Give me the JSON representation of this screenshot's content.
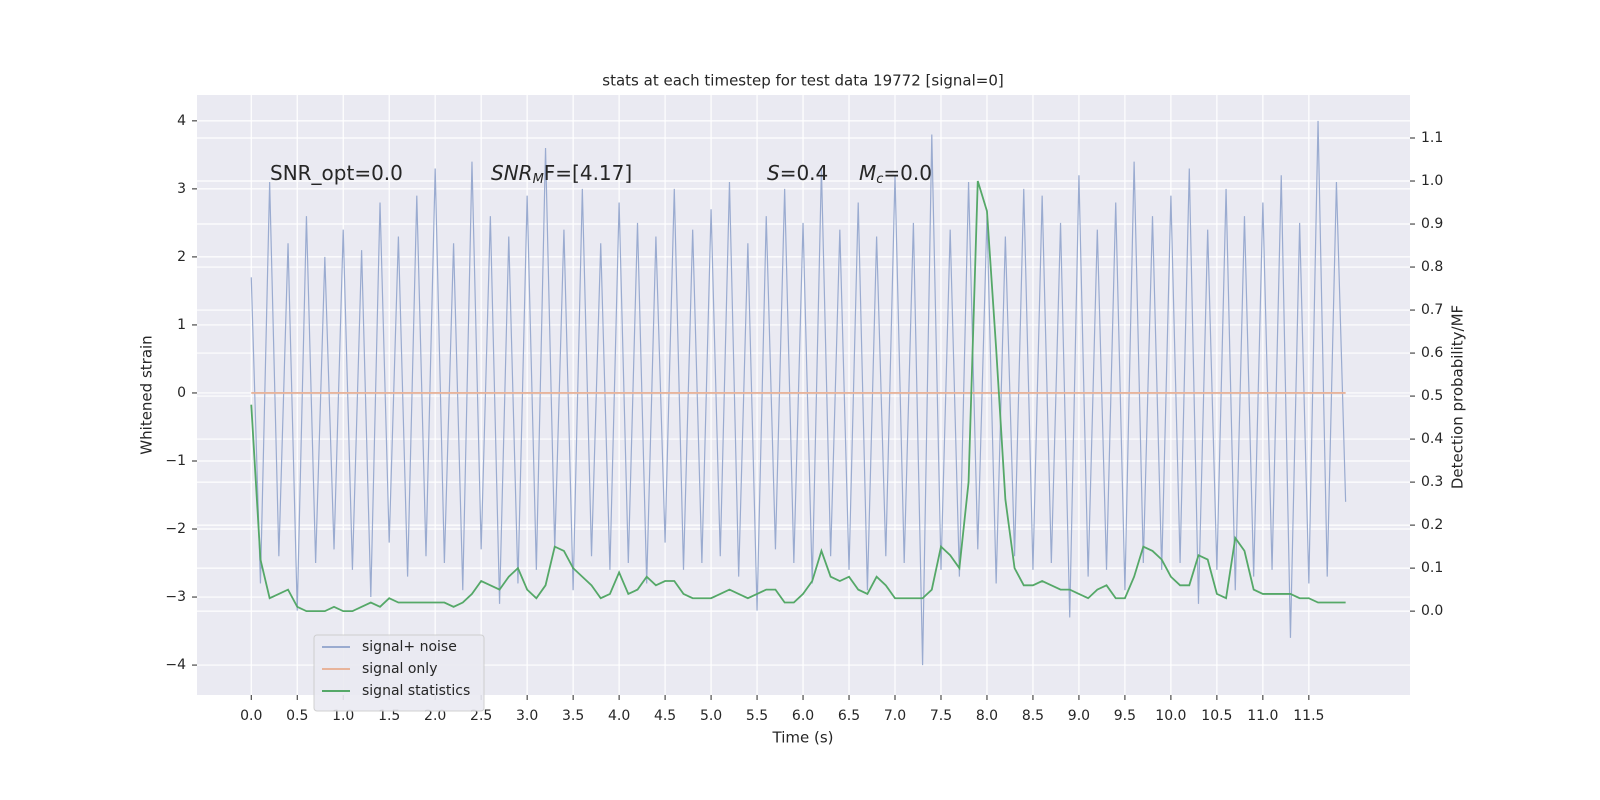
{
  "chart_data": {
    "type": "line",
    "title": "stats at each timestep for test data 19772 [signal=0]",
    "xlabel": "Time (s)",
    "ylabel": "Whitened strain",
    "y2label": "Detection probability/MF",
    "annotations": [
      {
        "base": "SNR_opt=0.0"
      },
      {
        "base": "SNR",
        "sub": "M",
        "rest": "F=[4.17]"
      },
      {
        "base": "S",
        "rest": "=0.4"
      },
      {
        "base": "M",
        "sub": "c",
        "rest": "=0.0"
      }
    ],
    "x": [
      0,
      0.1,
      0.2,
      0.3,
      0.4,
      0.5,
      0.6,
      0.7,
      0.8,
      0.9,
      1,
      1.1,
      1.2,
      1.3,
      1.4,
      1.5,
      1.6,
      1.7,
      1.8,
      1.9,
      2,
      2.1,
      2.2,
      2.3,
      2.4,
      2.5,
      2.6,
      2.7,
      2.8,
      2.9,
      3,
      3.1,
      3.2,
      3.3,
      3.4,
      3.5,
      3.6,
      3.7,
      3.8,
      3.9,
      4,
      4.1,
      4.2,
      4.3,
      4.4,
      4.5,
      4.6,
      4.7,
      4.8,
      4.9,
      5,
      5.1,
      5.2,
      5.3,
      5.4,
      5.5,
      5.6,
      5.7,
      5.8,
      5.9,
      6,
      6.1,
      6.2,
      6.3,
      6.4,
      6.5,
      6.6,
      6.7,
      6.8,
      6.9,
      7,
      7.1,
      7.2,
      7.3,
      7.4,
      7.5,
      7.6,
      7.7,
      7.8,
      7.9,
      8,
      8.1,
      8.2,
      8.3,
      8.4,
      8.5,
      8.6,
      8.7,
      8.8,
      8.9,
      9,
      9.1,
      9.2,
      9.3,
      9.4,
      9.5,
      9.6,
      9.7,
      9.8,
      9.9,
      10,
      10.1,
      10.2,
      10.3,
      10.4,
      10.5,
      10.6,
      10.7,
      10.8,
      10.9,
      11,
      11.1,
      11.2,
      11.3,
      11.4,
      11.5,
      11.6,
      11.7,
      11.8,
      11.9
    ],
    "series": [
      {
        "name": "signal+ noise",
        "color": "#9aabd0",
        "values": [
          1.7,
          -2.8,
          3.1,
          -2.4,
          2.2,
          -3.2,
          2.6,
          -2.5,
          2.0,
          -2.3,
          2.4,
          -2.6,
          2.1,
          -3.0,
          2.8,
          -2.2,
          2.3,
          -2.7,
          2.9,
          -2.4,
          3.3,
          -2.5,
          2.2,
          -2.9,
          3.4,
          -2.3,
          2.6,
          -3.1,
          2.3,
          -2.8,
          2.9,
          -2.6,
          3.6,
          -2.3,
          2.4,
          -2.9,
          3.0,
          -2.4,
          2.2,
          -2.6,
          2.8,
          -2.5,
          2.5,
          -2.8,
          2.3,
          -2.2,
          3.0,
          -2.6,
          2.4,
          -2.5,
          2.7,
          -2.4,
          3.1,
          -2.7,
          2.2,
          -3.2,
          2.6,
          -2.3,
          3.0,
          -2.5,
          2.5,
          -2.8,
          3.3,
          -2.4,
          2.4,
          -2.6,
          2.8,
          -2.9,
          2.3,
          -2.4,
          3.2,
          -2.5,
          2.5,
          -4.0,
          3.8,
          -2.6,
          2.4,
          -2.7,
          3.1,
          -2.3,
          2.6,
          -2.8,
          2.3,
          -2.4,
          3.0,
          -2.6,
          2.9,
          -2.5,
          2.5,
          -3.3,
          3.2,
          -2.7,
          2.4,
          -2.6,
          2.8,
          -2.9,
          3.4,
          -2.5,
          2.6,
          -2.6,
          2.9,
          -2.5,
          3.3,
          -3.1,
          2.4,
          -2.6,
          3.0,
          -2.9,
          2.6,
          -2.7,
          2.8,
          -2.6,
          3.2,
          -3.6,
          2.5,
          -2.8,
          4.0,
          -2.7,
          3.1,
          -1.6
        ]
      },
      {
        "name": "signal only",
        "color": "#e8b49b",
        "values": [
          0,
          0,
          0,
          0,
          0,
          0,
          0,
          0,
          0,
          0,
          0,
          0,
          0,
          0,
          0,
          0,
          0,
          0,
          0,
          0,
          0,
          0,
          0,
          0,
          0,
          0,
          0,
          0,
          0,
          0,
          0,
          0,
          0,
          0,
          0,
          0,
          0,
          0,
          0,
          0,
          0,
          0,
          0,
          0,
          0,
          0,
          0,
          0,
          0,
          0,
          0,
          0,
          0,
          0,
          0,
          0,
          0,
          0,
          0,
          0,
          0,
          0,
          0,
          0,
          0,
          0,
          0,
          0,
          0,
          0,
          0,
          0,
          0,
          0,
          0,
          0,
          0,
          0,
          0,
          0,
          0,
          0,
          0,
          0,
          0,
          0,
          0,
          0,
          0,
          0,
          0,
          0,
          0,
          0,
          0,
          0,
          0,
          0,
          0,
          0,
          0,
          0,
          0,
          0,
          0,
          0,
          0,
          0,
          0,
          0,
          0,
          0,
          0,
          0,
          0,
          0,
          0,
          0,
          0,
          0
        ]
      },
      {
        "name": "signal statistics",
        "color": "#55a868",
        "axis": "y2",
        "values": [
          0.48,
          0.12,
          0.03,
          0.04,
          0.05,
          0.01,
          0,
          0,
          0,
          0.01,
          0,
          0,
          0.01,
          0.02,
          0.01,
          0.03,
          0.02,
          0.02,
          0.02,
          0.02,
          0.02,
          0.02,
          0.01,
          0.02,
          0.04,
          0.07,
          0.06,
          0.05,
          0.08,
          0.1,
          0.05,
          0.03,
          0.06,
          0.15,
          0.14,
          0.1,
          0.08,
          0.06,
          0.03,
          0.04,
          0.09,
          0.04,
          0.05,
          0.08,
          0.06,
          0.07,
          0.07,
          0.04,
          0.03,
          0.03,
          0.03,
          0.04,
          0.05,
          0.04,
          0.03,
          0.04,
          0.05,
          0.05,
          0.02,
          0.02,
          0.04,
          0.07,
          0.14,
          0.08,
          0.07,
          0.08,
          0.05,
          0.04,
          0.08,
          0.06,
          0.03,
          0.03,
          0.03,
          0.03,
          0.05,
          0.15,
          0.13,
          0.1,
          0.3,
          1.0,
          0.93,
          0.61,
          0.26,
          0.1,
          0.06,
          0.06,
          0.07,
          0.06,
          0.05,
          0.05,
          0.04,
          0.03,
          0.05,
          0.06,
          0.03,
          0.03,
          0.08,
          0.15,
          0.14,
          0.12,
          0.08,
          0.06,
          0.06,
          0.13,
          0.12,
          0.04,
          0.03,
          0.17,
          0.14,
          0.05,
          0.04,
          0.04,
          0.04,
          0.04,
          0.03,
          0.03,
          0.02,
          0.02,
          0.02,
          0.02
        ]
      }
    ],
    "xlim": [
      -0.59,
      12.6
    ],
    "ylim": [
      -4.44,
      4.38
    ],
    "y2lim": [
      -0.195,
      1.2
    ],
    "xticks": [
      {
        "value": 0,
        "label": "0.0"
      },
      0.5,
      {
        "value": 1,
        "label": "1.0"
      },
      1.5,
      {
        "value": 2,
        "label": "2.0"
      },
      2.5,
      {
        "value": 3,
        "label": "3.0"
      },
      3.5,
      {
        "value": 4,
        "label": "4.0"
      },
      4.5,
      {
        "value": 5,
        "label": "5.0"
      },
      5.5,
      {
        "value": 6,
        "label": "6.0"
      },
      6.5,
      {
        "value": 7,
        "label": "7.0"
      },
      7.5,
      {
        "value": 8,
        "label": "8.0"
      },
      8.5,
      {
        "value": 9,
        "label": "9.0"
      },
      9.5,
      {
        "value": 10,
        "label": "10.0"
      },
      10.5,
      {
        "value": 11,
        "label": "11.0"
      },
      11.5
    ],
    "yticks": [
      {
        "value": -4,
        "label": "−4"
      },
      {
        "value": -3,
        "label": "−3"
      },
      {
        "value": -2,
        "label": "−2"
      },
      {
        "value": -1,
        "label": "−1"
      },
      0,
      1,
      2,
      3,
      4
    ],
    "y2ticks": [
      {
        "value": 0,
        "label": "0.0"
      },
      0.1,
      0.2,
      0.3,
      0.4,
      0.5,
      0.6,
      0.7,
      0.8,
      0.9,
      {
        "value": 1,
        "label": "1.0"
      },
      1.1
    ],
    "grid": true,
    "legend": "lower left",
    "background": "#eaeaf2"
  }
}
